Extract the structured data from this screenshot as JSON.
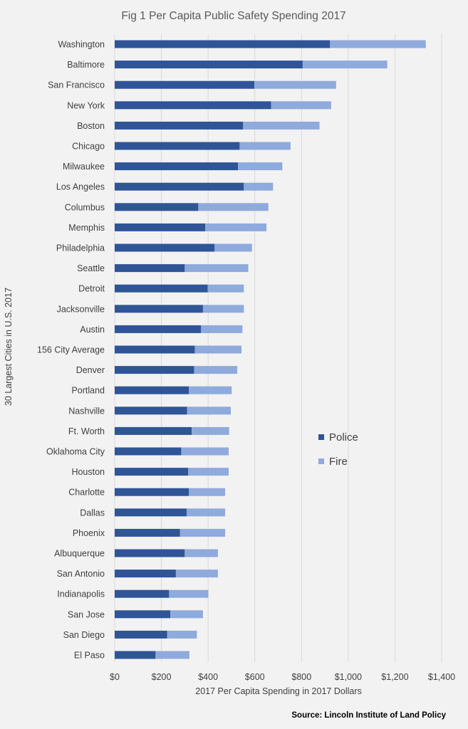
{
  "chart_data": {
    "type": "bar",
    "orientation": "horizontal",
    "stacked": true,
    "title": "Fig 1 Per Capita Public Safety Spending 2017",
    "xlabel": "2017 Per Capita Spending  in 2017 Dollars",
    "ylabel": "30 Largest Cities in U.S. 2017",
    "xlim": [
      0,
      1400
    ],
    "xticks": [
      0,
      200,
      400,
      600,
      800,
      1000,
      1200,
      1400
    ],
    "xtick_labels": [
      "$0",
      "$200",
      "$400",
      "$600",
      "$800",
      "$1,000",
      "$1,200",
      "$1,400"
    ],
    "grid": "vertical",
    "legend_position": "middle-right",
    "categories": [
      "Washington",
      "Baltimore",
      "San Francisco",
      "New York",
      "Boston",
      "Chicago",
      "Milwaukee",
      "Los Angeles",
      "Columbus",
      "Memphis",
      "Philadelphia",
      "Seattle",
      "Detroit",
      "Jacksonville",
      "Austin",
      "156 City Average",
      "Denver",
      "Portland",
      "Nashville",
      "Ft. Worth",
      "Oklahoma City",
      "Houston",
      "Charlotte",
      "Dallas",
      "Phoenix",
      "Albuquerque",
      "San Antonio",
      "Indianapolis",
      "San Jose",
      "San Diego",
      "El Paso"
    ],
    "series": [
      {
        "name": "Police",
        "color": "#2f5597",
        "values": [
          922,
          805,
          598,
          670,
          550,
          535,
          528,
          553,
          358,
          388,
          428,
          300,
          398,
          378,
          370,
          343,
          340,
          318,
          310,
          330,
          285,
          315,
          318,
          308,
          280,
          300,
          262,
          233,
          238,
          225,
          175
        ]
      },
      {
        "name": "Fire",
        "color": "#8faadc",
        "values": [
          410,
          362,
          350,
          257,
          327,
          218,
          190,
          125,
          300,
          262,
          160,
          272,
          155,
          175,
          177,
          200,
          185,
          183,
          187,
          160,
          203,
          173,
          155,
          165,
          193,
          142,
          180,
          168,
          140,
          127,
          145
        ]
      }
    ]
  },
  "source_text": "Source: Lincoln Institute of Land Policy"
}
